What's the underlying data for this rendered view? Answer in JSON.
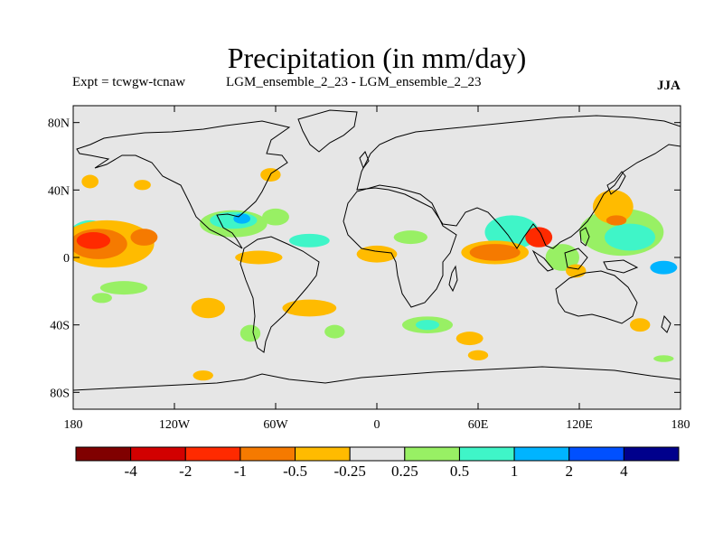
{
  "header": {
    "title": "Precipitation (in mm/day)",
    "expt": "Expt = tcwgw-tcnaw",
    "subtitle": "LGM_ensemble_2_23 - LGM_ensemble_2_23",
    "season": "JJA"
  },
  "chart_data": {
    "type": "heatmap",
    "title": "Precipitation (in mm/day)",
    "projection": "cylindrical-equidistant",
    "background_color": "#e6e6e6",
    "lon_range": [
      -180,
      180
    ],
    "lat_range": [
      -90,
      90
    ],
    "lat_ticks": [
      {
        "value": 80,
        "label": "80N"
      },
      {
        "value": 40,
        "label": "40N"
      },
      {
        "value": 0,
        "label": "0"
      },
      {
        "value": -40,
        "label": "40S"
      },
      {
        "value": -80,
        "label": "80S"
      }
    ],
    "lon_ticks": [
      {
        "value": -180,
        "label": "180"
      },
      {
        "value": -120,
        "label": "120W"
      },
      {
        "value": -60,
        "label": "60W"
      },
      {
        "value": 0,
        "label": "0"
      },
      {
        "value": 60,
        "label": "60E"
      },
      {
        "value": 120,
        "label": "120E"
      },
      {
        "value": 180,
        "label": "180"
      }
    ],
    "colorbar": {
      "colors": [
        "#800000",
        "#d20000",
        "#ff2a00",
        "#f57a00",
        "#ffbb00",
        "#e6e6e6",
        "#98f064",
        "#3ff5c8",
        "#00b4ff",
        "#0050ff",
        "#00008c"
      ],
      "labels": [
        "-4",
        "-2",
        "-1",
        "-0.5",
        "-0.25",
        "0.25",
        "0.5",
        "1",
        "2",
        "4"
      ]
    },
    "regions": [
      {
        "name": "central-pacific-west-blue",
        "level": "0.5",
        "cx": -170,
        "cy": 10,
        "rx": 14,
        "ry": 12
      },
      {
        "name": "central-pacific-warm",
        "level": "-0.25",
        "cx": -160,
        "cy": 8,
        "rx": 28,
        "ry": 14
      },
      {
        "name": "central-pacific-orange",
        "level": "-0.5",
        "cx": -165,
        "cy": 8,
        "rx": 17,
        "ry": 9
      },
      {
        "name": "central-pacific-red",
        "level": "-1",
        "cx": -168,
        "cy": 10,
        "rx": 10,
        "ry": 5
      },
      {
        "name": "east-pacific-orange",
        "level": "-0.5",
        "cx": -138,
        "cy": 12,
        "rx": 8,
        "ry": 5
      },
      {
        "name": "southwest-pacific-green",
        "level": "0.25",
        "cx": -150,
        "cy": -18,
        "rx": 14,
        "ry": 4
      },
      {
        "name": "north-pacific-orange",
        "level": "-0.25",
        "cx": -170,
        "cy": 45,
        "rx": 5,
        "ry": 4
      },
      {
        "name": "north-pacific-orange-2",
        "level": "-0.25",
        "cx": -139,
        "cy": 43,
        "rx": 5,
        "ry": 3
      },
      {
        "name": "south-pacific-green",
        "level": "0.25",
        "cx": -163,
        "cy": -24,
        "rx": 6,
        "ry": 3
      },
      {
        "name": "caribbean-green",
        "level": "0.25",
        "cx": -85,
        "cy": 20,
        "rx": 20,
        "ry": 8
      },
      {
        "name": "caribbean-cyan",
        "level": "0.5",
        "cx": -85,
        "cy": 22,
        "rx": 14,
        "ry": 5
      },
      {
        "name": "gulf-blue",
        "level": "1",
        "cx": -80,
        "cy": 23,
        "rx": 5,
        "ry": 3
      },
      {
        "name": "atlantic-green",
        "level": "0.25",
        "cx": -60,
        "cy": 24,
        "rx": 8,
        "ry": 5
      },
      {
        "name": "mid-atlantic-cyan",
        "level": "0.5",
        "cx": -40,
        "cy": 10,
        "rx": 12,
        "ry": 4
      },
      {
        "name": "itcz-orange",
        "level": "-0.25",
        "cx": -70,
        "cy": 0,
        "rx": 14,
        "ry": 4
      },
      {
        "name": "nw-atlantic-orange",
        "level": "-0.25",
        "cx": -63,
        "cy": 49,
        "rx": 6,
        "ry": 4
      },
      {
        "name": "south-america-orange",
        "level": "-0.25",
        "cx": -100,
        "cy": -30,
        "rx": 10,
        "ry": 6
      },
      {
        "name": "south-atlantic-orange",
        "level": "-0.25",
        "cx": -40,
        "cy": -30,
        "rx": 16,
        "ry": 5
      },
      {
        "name": "south-america-green",
        "level": "0.25",
        "cx": -75,
        "cy": -45,
        "rx": 6,
        "ry": 5
      },
      {
        "name": "south-atlantic-green",
        "level": "0.25",
        "cx": -25,
        "cy": -44,
        "rx": 6,
        "ry": 4
      },
      {
        "name": "southern-ocean-orange",
        "level": "-0.25",
        "cx": -103,
        "cy": -70,
        "rx": 6,
        "ry": 3
      },
      {
        "name": "west-africa-orange",
        "level": "-0.25",
        "cx": 0,
        "cy": 2,
        "rx": 12,
        "ry": 5
      },
      {
        "name": "east-africa-green",
        "level": "0.25",
        "cx": 20,
        "cy": 12,
        "rx": 10,
        "ry": 4
      },
      {
        "name": "indian-ocean-cyan",
        "level": "0.5",
        "cx": 80,
        "cy": 15,
        "rx": 16,
        "ry": 10
      },
      {
        "name": "indian-ocean-warm",
        "level": "-0.25",
        "cx": 70,
        "cy": 3,
        "rx": 20,
        "ry": 7
      },
      {
        "name": "indian-ocean-orange",
        "level": "-0.5",
        "cx": 70,
        "cy": 3,
        "rx": 15,
        "ry": 5
      },
      {
        "name": "bay-of-bengal-red",
        "level": "-1",
        "cx": 96,
        "cy": 12,
        "rx": 8,
        "ry": 6
      },
      {
        "name": "south-china-sea-green",
        "level": "0.25",
        "cx": 110,
        "cy": 0,
        "rx": 10,
        "ry": 8
      },
      {
        "name": "west-pacific-green",
        "level": "0.25",
        "cx": 145,
        "cy": 15,
        "rx": 25,
        "ry": 14
      },
      {
        "name": "west-pacific-cyan",
        "level": "0.5",
        "cx": 150,
        "cy": 12,
        "rx": 15,
        "ry": 8
      },
      {
        "name": "west-pacific-blue",
        "level": "1",
        "cx": 170,
        "cy": -6,
        "rx": 8,
        "ry": 4
      },
      {
        "name": "japan-orange",
        "level": "-0.25",
        "cx": 140,
        "cy": 30,
        "rx": 12,
        "ry": 10
      },
      {
        "name": "japan-red",
        "level": "-0.5",
        "cx": 142,
        "cy": 22,
        "rx": 6,
        "ry": 3
      },
      {
        "name": "australia-orange",
        "level": "-0.25",
        "cx": 118,
        "cy": -8,
        "rx": 6,
        "ry": 4
      },
      {
        "name": "southern-indian-green",
        "level": "0.25",
        "cx": 30,
        "cy": -40,
        "rx": 15,
        "ry": 5
      },
      {
        "name": "southern-indian-cyan",
        "level": "0.5",
        "cx": 30,
        "cy": -40,
        "rx": 7,
        "ry": 3
      },
      {
        "name": "southern-indian-orange",
        "level": "-0.25",
        "cx": 55,
        "cy": -48,
        "rx": 8,
        "ry": 4
      },
      {
        "name": "southern-indian-orange-2",
        "level": "-0.25",
        "cx": 60,
        "cy": -58,
        "rx": 6,
        "ry": 3
      },
      {
        "name": "tasman-orange",
        "level": "-0.25",
        "cx": 156,
        "cy": -40,
        "rx": 6,
        "ry": 4
      },
      {
        "name": "southern-ocean-green",
        "level": "0.25",
        "cx": 170,
        "cy": -60,
        "rx": 6,
        "ry": 2
      }
    ]
  }
}
